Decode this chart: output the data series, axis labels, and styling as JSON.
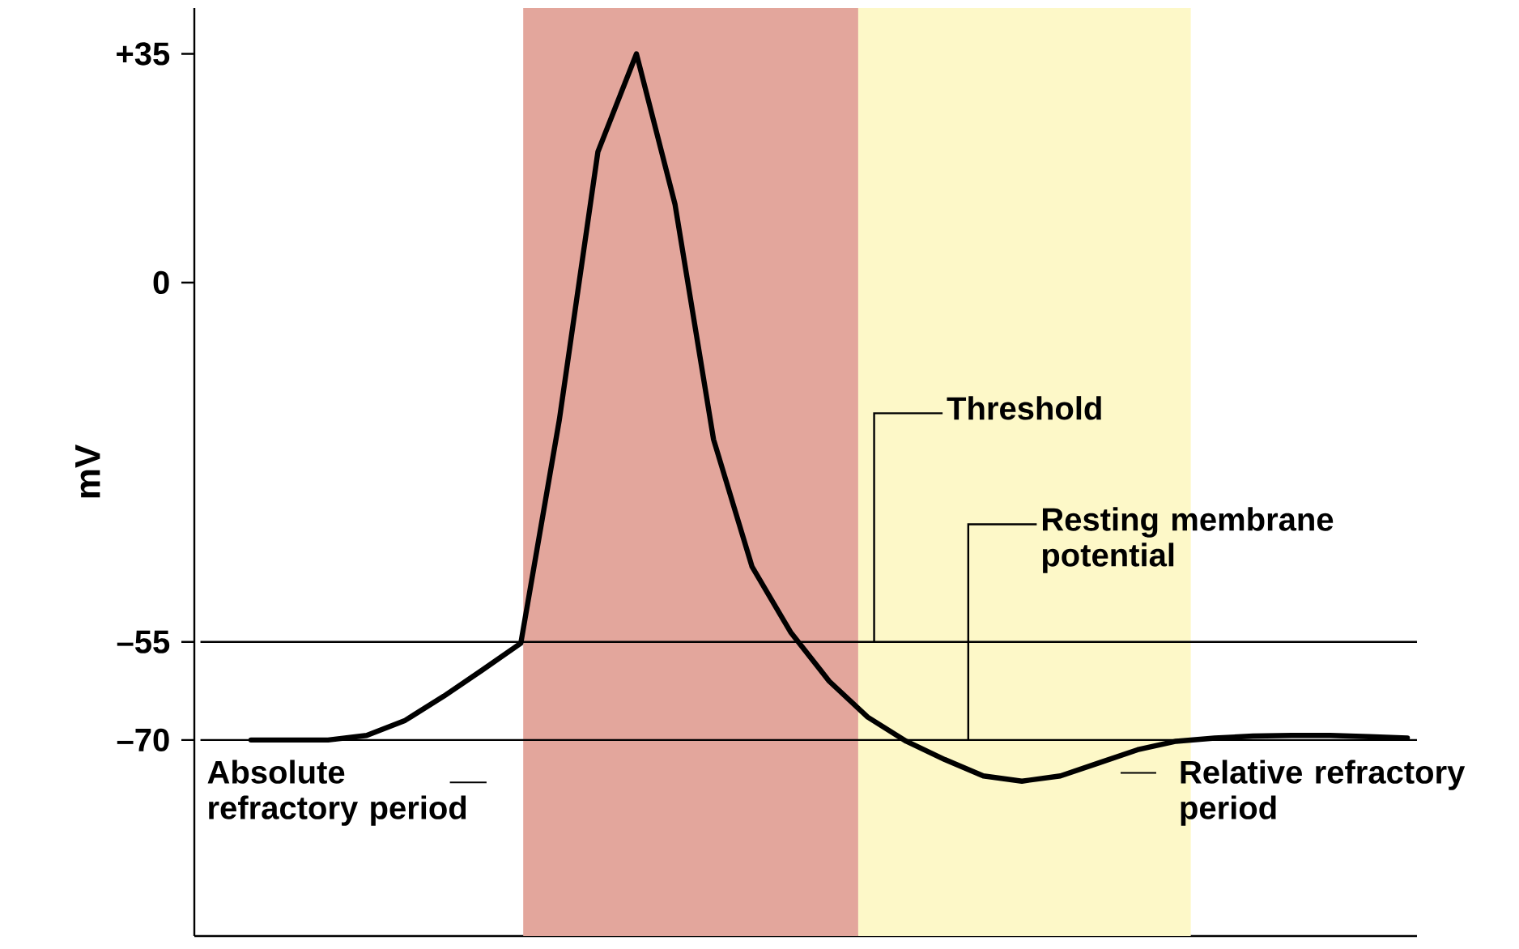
{
  "chart_data": {
    "type": "line",
    "ylabel": "mV",
    "categories": [
      null,
      null,
      null,
      null,
      null,
      null,
      null,
      null,
      null,
      null,
      null,
      null,
      null,
      null,
      null,
      null,
      null,
      null,
      null,
      null,
      null,
      null,
      null,
      null,
      null,
      null,
      null,
      null,
      null,
      null,
      null
    ],
    "series": [
      {
        "color": "#000000",
        "values": [
          -70,
          -70,
          -70,
          -69.3,
          -67,
          -63.3,
          -59.3,
          -55.2,
          -21,
          20,
          35,
          12,
          -24,
          -43.5,
          -53.5,
          -61,
          -66.5,
          -70.2,
          -73,
          -75.5,
          -76.3,
          -75.5,
          -73.5,
          -71.5,
          -70.2,
          -69.7,
          -69.4,
          -69.3,
          -69.3,
          -69.5,
          -69.7
        ]
      }
    ],
    "ylim": [
      -100,
      42
    ],
    "yticks": [
      {
        "value": 35,
        "label": "+35"
      },
      {
        "value": 0,
        "label": "0"
      },
      {
        "value": -55,
        "label": "–55"
      },
      {
        "value": -70,
        "label": "–70"
      }
    ],
    "tick_labels": "y",
    "ref_lines": [
      {
        "axis": "y",
        "value": -55,
        "label": "Threshold",
        "color": "#000000"
      },
      {
        "axis": "y",
        "value": -70,
        "label": "Resting membrane potential",
        "color": "#000000"
      }
    ],
    "annotations": [
      "Absolute refractory period",
      "Relative refractory period"
    ]
  }
}
